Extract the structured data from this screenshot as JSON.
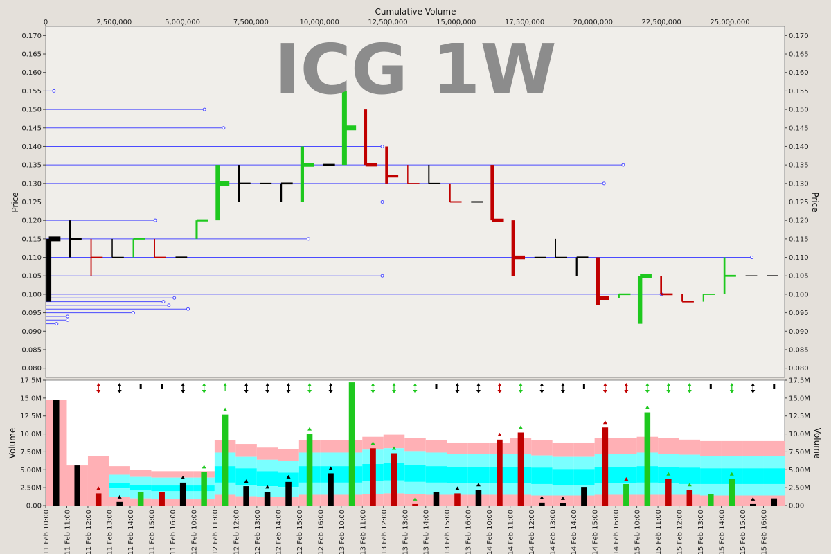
{
  "chart_data": {
    "type": "bar",
    "watermark": "ICG 1W",
    "top_axis_label": "Cumulative Volume",
    "price_axis_label": "Price",
    "volume_axis_label": "Volume",
    "cumvol_ticks": [
      "0",
      "2,500,000",
      "5,000,000",
      "7,500,000",
      "10,000,000",
      "12,500,000",
      "15,000,000",
      "17,500,000",
      "20,000,000",
      "22,500,000",
      "25,000,000"
    ],
    "price_ticks": [
      "0.170",
      "0.165",
      "0.160",
      "0.155",
      "0.150",
      "0.145",
      "0.140",
      "0.135",
      "0.130",
      "0.125",
      "0.120",
      "0.115",
      "0.110",
      "0.105",
      "0.100",
      "0.095",
      "0.090",
      "0.085",
      "0.080"
    ],
    "volume_ticks": [
      "17.5M",
      "15.0M",
      "12.5M",
      "10.0M",
      "7.50M",
      "5.00M",
      "2.50M",
      "0.00"
    ],
    "time_labels": [
      "11 Feb 10:00",
      "11 Feb 11:00",
      "11 Feb 12:00",
      "11 Feb 13:00",
      "11 Feb 14:00",
      "11 Feb 15:00",
      "11 Feb 16:00",
      "12 Feb 10:00",
      "12 Feb 11:00",
      "12 Feb 12:00",
      "12 Feb 13:00",
      "12 Feb 14:00",
      "12 Feb 15:00",
      "12 Feb 16:00",
      "13 Feb 10:00",
      "13 Feb 11:00",
      "13 Feb 12:00",
      "13 Feb 13:00",
      "13 Feb 14:00",
      "13 Feb 15:00",
      "13 Feb 16:00",
      "14 Feb 10:00",
      "14 Feb 11:00",
      "14 Feb 12:00",
      "14 Feb 13:00",
      "14 Feb 14:00",
      "14 Feb 15:00",
      "14 Feb 16:00",
      "15 Feb 10:00",
      "15 Feb 11:00",
      "15 Feb 12:00",
      "15 Feb 13:00",
      "15 Feb 14:00",
      "15 Feb 15:00",
      "15 Feb 16:00"
    ],
    "price_range": [
      0.0775,
      0.1725
    ],
    "volume_range": [
      0,
      17.5
    ],
    "cumvol_range": [
      0,
      27000000
    ],
    "grid": false,
    "colors": {
      "up": "#1ec81e",
      "down": "#c00000",
      "flat": "#000000",
      "price_line": "#4a4aff",
      "band_outer": "#ffb0b5",
      "band_mid": "#7affff",
      "band_inner": "#00ffff",
      "plot_bg": "#f0eeea",
      "vol_bg": "#ffffff",
      "watermark": "#8c8c8c"
    },
    "price_levels": [
      {
        "price": 0.155,
        "cumvol": 300000
      },
      {
        "price": 0.15,
        "cumvol": 5800000
      },
      {
        "price": 0.145,
        "cumvol": 6500000
      },
      {
        "price": 0.14,
        "cumvol": 12300000
      },
      {
        "price": 0.135,
        "cumvol": 21100000
      },
      {
        "price": 0.13,
        "cumvol": 20400000
      },
      {
        "price": 0.125,
        "cumvol": 12300000
      },
      {
        "price": 0.12,
        "cumvol": 4000000
      },
      {
        "price": 0.115,
        "cumvol": 9600000
      },
      {
        "price": 0.11,
        "cumvol": 25800000
      },
      {
        "price": 0.105,
        "cumvol": 12300000
      },
      {
        "price": 0.1,
        "cumvol": 22500000
      },
      {
        "price": 0.099,
        "cumvol": 4700000
      },
      {
        "price": 0.098,
        "cumvol": 4300000
      },
      {
        "price": 0.097,
        "cumvol": 4500000
      },
      {
        "price": 0.096,
        "cumvol": 5200000
      },
      {
        "price": 0.095,
        "cumvol": 3200000
      },
      {
        "price": 0.094,
        "cumvol": 800000
      },
      {
        "price": 0.093,
        "cumvol": 800000
      },
      {
        "price": 0.092,
        "cumvol": 400000
      }
    ],
    "bars": [
      {
        "c": "k",
        "o": 0.115,
        "h": 0.115,
        "l": 0.098,
        "cl": 0.115,
        "v": 14.7,
        "b": [
          14.7,
          14.7,
          14.7
        ],
        "m": ""
      },
      {
        "c": "k",
        "o": 0.115,
        "h": 0.12,
        "l": 0.11,
        "cl": 0.115,
        "v": 5.6,
        "b": [
          5.6,
          5.6,
          5.6
        ],
        "m": ""
      },
      {
        "c": "r",
        "o": 0.11,
        "h": 0.115,
        "l": 0.105,
        "cl": 0.11,
        "v": 1.7,
        "b": [
          6.9,
          5.8,
          1.4
        ],
        "m": "rud"
      },
      {
        "c": "k",
        "o": 0.11,
        "h": 0.115,
        "l": 0.11,
        "cl": 0.11,
        "v": 0.5,
        "b": [
          5.5,
          4.3,
          3.1,
          2.4,
          1.2
        ],
        "m": "kud"
      },
      {
        "c": "g",
        "o": 0.11,
        "h": 0.115,
        "l": 0.11,
        "cl": 0.115,
        "v": 1.9,
        "b": [
          5.0,
          4.0,
          2.9,
          2.1,
          1.0
        ],
        "m": "kb"
      },
      {
        "c": "r",
        "o": 0.115,
        "h": 0.115,
        "l": 0.11,
        "cl": 0.11,
        "v": 1.9,
        "b": [
          4.8,
          3.9,
          2.8,
          2.0,
          0.9
        ],
        "m": "kb"
      },
      {
        "c": "k",
        "o": 0.11,
        "h": 0.11,
        "l": 0.11,
        "cl": 0.11,
        "v": 3.2,
        "b": [
          4.8,
          3.9,
          2.8,
          2.0,
          0.9
        ],
        "m": "kud"
      },
      {
        "c": "g",
        "o": 0.115,
        "h": 0.12,
        "l": 0.115,
        "cl": 0.12,
        "v": 4.7,
        "b": [
          4.8,
          3.9,
          2.8,
          2.0,
          0.9
        ],
        "m": "gud"
      },
      {
        "c": "g",
        "o": 0.12,
        "h": 0.135,
        "l": 0.12,
        "cl": 0.13,
        "v": 12.7,
        "b": [
          9.1,
          7.4,
          5.5,
          3.2,
          1.5
        ],
        "m": "gu"
      },
      {
        "c": "k",
        "o": 0.13,
        "h": 0.135,
        "l": 0.125,
        "cl": 0.13,
        "v": 2.7,
        "b": [
          8.6,
          6.8,
          5.2,
          2.9,
          1.3
        ],
        "m": "kud"
      },
      {
        "c": "k",
        "o": 0.13,
        "h": 0.13,
        "l": 0.13,
        "cl": 0.13,
        "v": 1.9,
        "b": [
          8.1,
          6.4,
          4.8,
          2.7,
          1.2
        ],
        "m": "kud"
      },
      {
        "c": "k",
        "o": 0.13,
        "h": 0.13,
        "l": 0.125,
        "cl": 0.13,
        "v": 3.3,
        "b": [
          7.9,
          6.2,
          4.6,
          2.6,
          1.2
        ],
        "m": "kud"
      },
      {
        "c": "g",
        "o": 0.125,
        "h": 0.14,
        "l": 0.125,
        "cl": 0.135,
        "v": 10.0,
        "b": [
          9.1,
          7.4,
          5.5,
          3.2,
          1.5
        ],
        "m": "gud"
      },
      {
        "c": "k",
        "o": 0.135,
        "h": 0.135,
        "l": 0.135,
        "cl": 0.135,
        "v": 4.5,
        "b": [
          9.1,
          7.4,
          5.5,
          3.2,
          1.5
        ],
        "m": "kud"
      },
      {
        "c": "g",
        "o": 0.135,
        "h": 0.155,
        "l": 0.135,
        "cl": 0.145,
        "v": 17.2,
        "b": [
          9.1,
          7.4,
          5.5,
          3.2,
          1.5
        ],
        "m": "gud"
      },
      {
        "c": "r",
        "o": 0.15,
        "h": 0.15,
        "l": 0.135,
        "cl": 0.135,
        "v": 8.0,
        "b": [
          9.6,
          7.8,
          5.8,
          3.4,
          1.6
        ],
        "m": "gud"
      },
      {
        "c": "r",
        "o": 0.14,
        "h": 0.14,
        "l": 0.13,
        "cl": 0.132,
        "v": 7.3,
        "b": [
          9.9,
          8.0,
          6.0,
          3.5,
          1.7
        ],
        "m": "gud"
      },
      {
        "c": "r",
        "o": 0.135,
        "h": 0.135,
        "l": 0.13,
        "cl": 0.13,
        "v": 0.2,
        "b": [
          9.4,
          7.6,
          5.7,
          3.3,
          1.6
        ],
        "m": "gud"
      },
      {
        "c": "k",
        "o": 0.135,
        "h": 0.135,
        "l": 0.13,
        "cl": 0.13,
        "v": 1.9,
        "b": [
          9.1,
          7.4,
          5.5,
          3.2,
          1.5
        ],
        "m": "kb"
      },
      {
        "c": "r",
        "o": 0.13,
        "h": 0.13,
        "l": 0.125,
        "cl": 0.125,
        "v": 1.7,
        "b": [
          8.8,
          7.2,
          5.4,
          3.1,
          1.5
        ],
        "m": "kud"
      },
      {
        "c": "k",
        "o": 0.125,
        "h": 0.125,
        "l": 0.125,
        "cl": 0.125,
        "v": 2.2,
        "b": [
          8.8,
          7.2,
          5.4,
          3.1,
          1.5
        ],
        "m": "kud"
      },
      {
        "c": "r",
        "o": 0.135,
        "h": 0.135,
        "l": 0.12,
        "cl": 0.12,
        "v": 9.2,
        "b": [
          8.8,
          7.2,
          5.4,
          3.1,
          1.5
        ],
        "m": "rud"
      },
      {
        "c": "r",
        "o": 0.12,
        "h": 0.12,
        "l": 0.105,
        "cl": 0.11,
        "v": 10.2,
        "b": [
          9.4,
          7.2,
          5.4,
          3.1,
          1.5
        ],
        "m": "gud"
      },
      {
        "c": "k",
        "o": 0.11,
        "h": 0.11,
        "l": 0.11,
        "cl": 0.11,
        "v": 0.4,
        "b": [
          9.1,
          7.0,
          5.3,
          3.0,
          1.4
        ],
        "m": "kud"
      },
      {
        "c": "k",
        "o": 0.11,
        "h": 0.115,
        "l": 0.11,
        "cl": 0.11,
        "v": 0.3,
        "b": [
          8.8,
          6.8,
          5.1,
          2.9,
          1.4
        ],
        "m": "kud"
      },
      {
        "c": "k",
        "o": 0.11,
        "h": 0.11,
        "l": 0.105,
        "cl": 0.11,
        "v": 2.6,
        "b": [
          8.8,
          6.8,
          5.1,
          2.9,
          1.4
        ],
        "m": "kb"
      },
      {
        "c": "r",
        "o": 0.11,
        "h": 0.11,
        "l": 0.097,
        "cl": 0.099,
        "v": 10.9,
        "b": [
          9.4,
          7.2,
          5.4,
          3.1,
          1.5
        ],
        "m": "rud"
      },
      {
        "c": "g",
        "o": 0.1,
        "h": 0.1,
        "l": 0.099,
        "cl": 0.1,
        "v": 3.0,
        "b": [
          9.4,
          7.2,
          5.4,
          3.1,
          1.5
        ],
        "m": "rud"
      },
      {
        "c": "g",
        "o": 0.092,
        "h": 0.105,
        "l": 0.092,
        "cl": 0.105,
        "v": 13.0,
        "b": [
          9.6,
          7.4,
          5.5,
          3.2,
          1.5
        ],
        "m": "gud"
      },
      {
        "c": "r",
        "o": 0.105,
        "h": 0.105,
        "l": 0.1,
        "cl": 0.1,
        "v": 3.7,
        "b": [
          9.4,
          7.2,
          5.4,
          3.1,
          1.5
        ],
        "m": "gud"
      },
      {
        "c": "r",
        "o": 0.1,
        "h": 0.1,
        "l": 0.098,
        "cl": 0.098,
        "v": 2.2,
        "b": [
          9.2,
          7.1,
          5.3,
          3.0,
          1.5
        ],
        "m": "gud"
      },
      {
        "c": "g",
        "o": 0.098,
        "h": 0.1,
        "l": 0.098,
        "cl": 0.1,
        "v": 1.6,
        "b": [
          9.0,
          6.9,
          5.2,
          3.0,
          1.4
        ],
        "m": "kb"
      },
      {
        "c": "g",
        "o": 0.1,
        "h": 0.11,
        "l": 0.1,
        "cl": 0.105,
        "v": 3.7,
        "b": [
          9.0,
          6.9,
          5.2,
          3.0,
          1.4
        ],
        "m": "gud"
      },
      {
        "c": "k",
        "o": 0.105,
        "h": 0.105,
        "l": 0.105,
        "cl": 0.105,
        "v": 0.2,
        "b": [
          9.0,
          6.9,
          5.2,
          3.0,
          1.4
        ],
        "m": "kud"
      },
      {
        "c": "k",
        "o": 0.105,
        "h": 0.105,
        "l": 0.105,
        "cl": 0.105,
        "v": 1.0,
        "b": [
          9.0,
          6.9,
          5.2,
          3.0,
          1.4
        ],
        "m": "kb"
      }
    ]
  }
}
